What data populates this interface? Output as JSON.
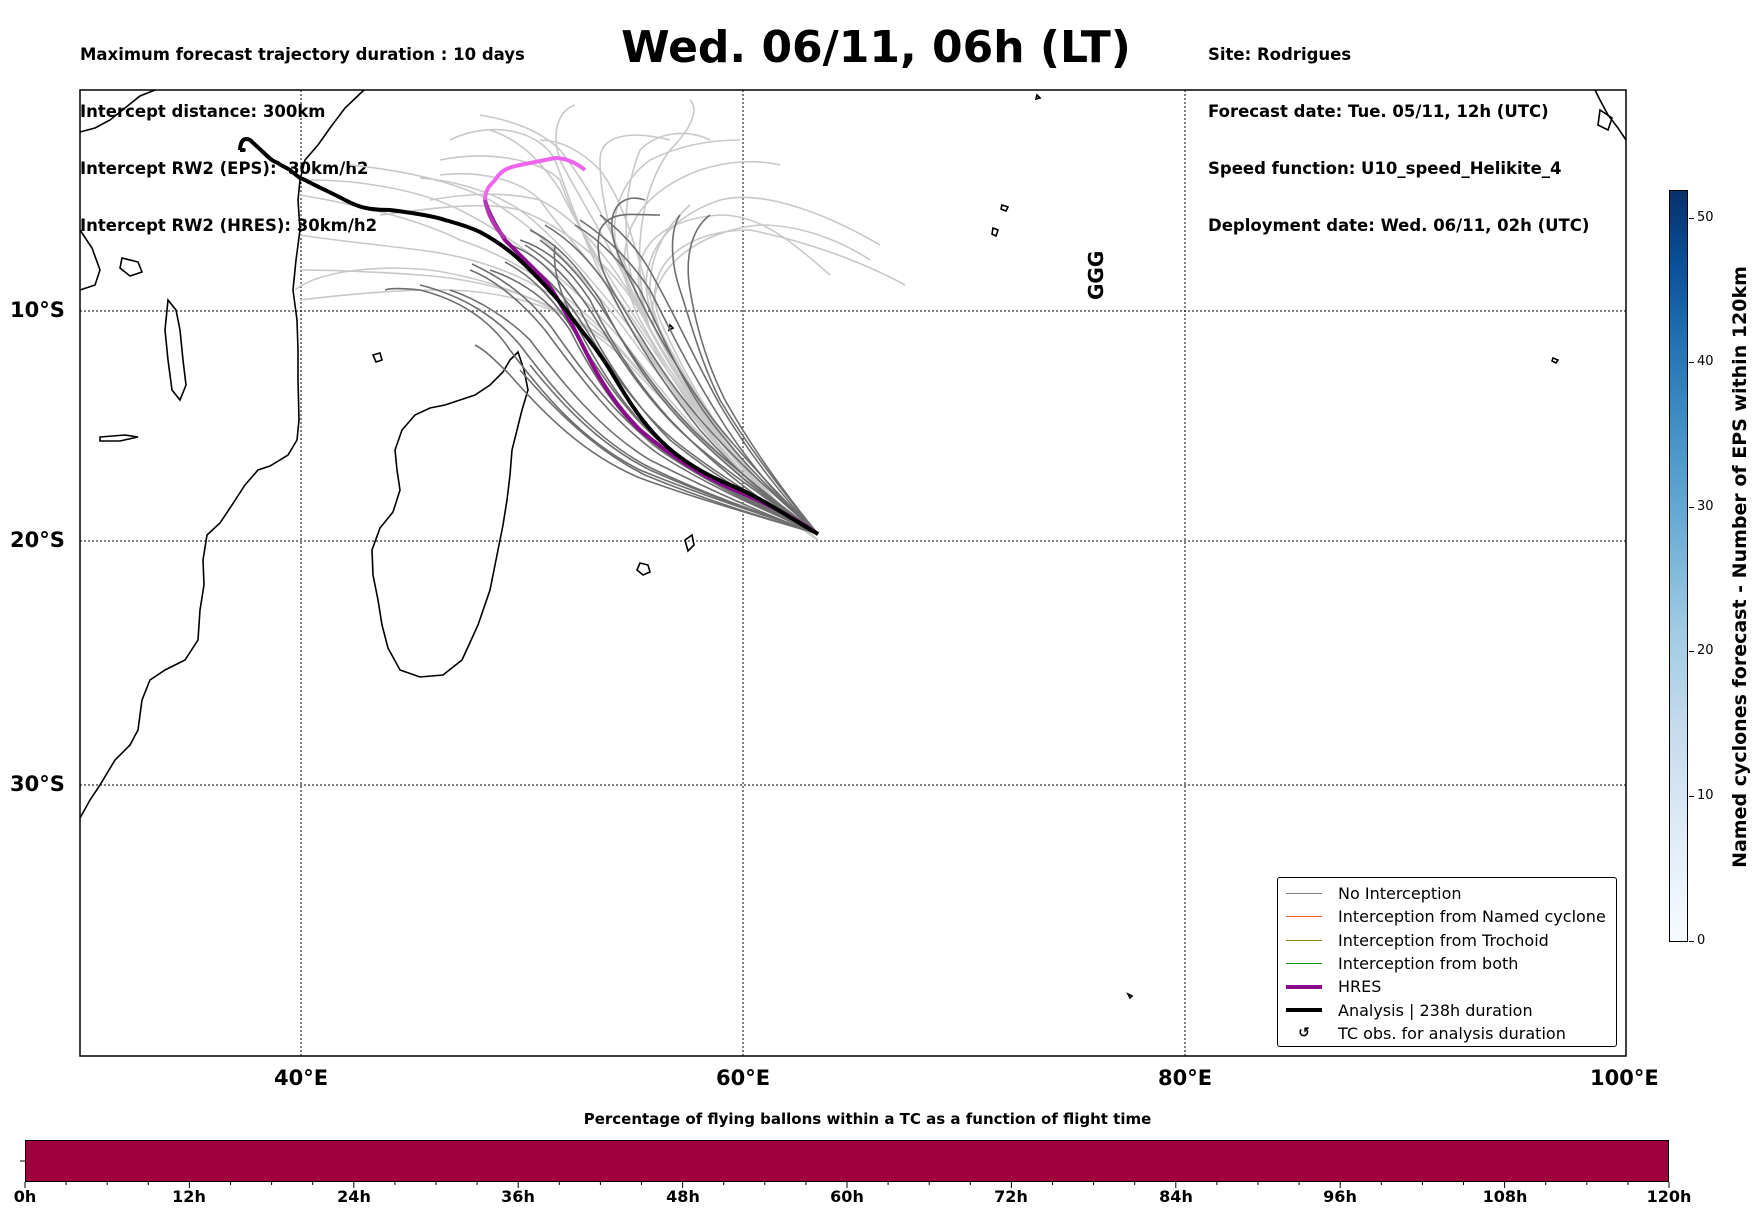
{
  "header_left": {
    "line1": "Maximum forecast trajectory duration : 10 days",
    "line2": "Intercept distance: 300km",
    "line3": "Intercept RW2 (EPS):  30km/h2",
    "line4": "Intercept RW2 (HRES): 30km/h2"
  },
  "title": "Wed. 06/11, 06h (LT)",
  "header_right": {
    "line1": "Site: Rodrigues",
    "line2": "Forecast date: Tue. 05/11, 12h (UTC)",
    "line3": "Speed function: U10_speed_Helikite_4",
    "line4": "Deployment date: Wed. 06/11, 02h (UTC)"
  },
  "map": {
    "lon_labels": [
      "40°E",
      "60°E",
      "80°E",
      "100°E"
    ],
    "lat_labels": [
      "10°S",
      "20°S",
      "30°S"
    ],
    "annotation": "GGG",
    "colors": {
      "land_outline": "#000000",
      "eps_light": "#c8c8c8",
      "eps_dark": "#6e6e6e",
      "hres_early": "#ee66ee",
      "hres": "#8b0a8b",
      "analysis": "#000000"
    }
  },
  "legend": {
    "items": [
      {
        "label": "No Interception",
        "color": "#808080",
        "style": "line-thin"
      },
      {
        "label": "Interception from Named cyclone",
        "color": "#ff5a1e",
        "style": "line-thin"
      },
      {
        "label": "Interception from Trochoid",
        "color": "#8c8c00",
        "style": "line-thin"
      },
      {
        "label": "Interception from both",
        "color": "#00a000",
        "style": "line-thin"
      },
      {
        "label": "HRES",
        "color": "#8b0a8b",
        "style": "line-thick"
      },
      {
        "label": "Analysis | 238h duration",
        "color": "#000000",
        "style": "line-thick"
      },
      {
        "label": "TC obs. for analysis duration",
        "color": "#000000",
        "style": "symbol",
        "symbol": "↺"
      }
    ]
  },
  "colorbar": {
    "title": "Named cyclones forecast - Number of EPS within 120km",
    "ticks": [
      "0",
      "10",
      "20",
      "30",
      "40",
      "50"
    ],
    "range": [
      0,
      52
    ]
  },
  "percentage_bar": {
    "title": "Percentage of flying ballons within a TC as a function of flight time",
    "ticks": [
      "0h",
      "12h",
      "24h",
      "36h",
      "48h",
      "60h",
      "72h",
      "84h",
      "96h",
      "108h",
      "120h"
    ],
    "color": "#a0003c"
  }
}
